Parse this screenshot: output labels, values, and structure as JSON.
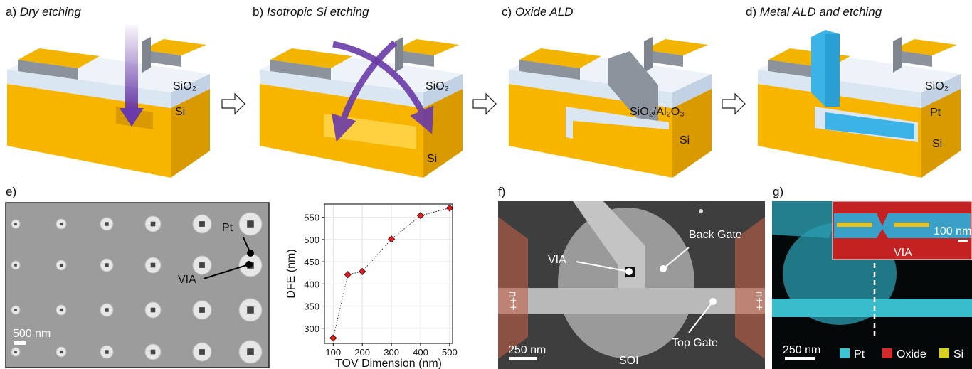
{
  "panels": [
    {
      "label": "a)",
      "title": "Dry etching",
      "annotations": [
        "SiO₂",
        "Si"
      ]
    },
    {
      "label": "b)",
      "title": "Isotropic Si etching",
      "annotations": [
        "SiO₂",
        "Si"
      ]
    },
    {
      "label": "c)",
      "title": "Oxide ALD",
      "annotations": [
        "SiO₂/Al₂O₃",
        "Si"
      ]
    },
    {
      "label": "d)",
      "title": "Metal ALD and etching",
      "annotations": [
        "SiO₂",
        "Pt",
        "Si"
      ]
    }
  ],
  "panel_e": {
    "label": "e)",
    "annotations": [
      "Pt",
      "VIA",
      "500 nm"
    ]
  },
  "chart_data": {
    "type": "line",
    "x": [
      100,
      150,
      200,
      300,
      400,
      500
    ],
    "values": [
      278,
      421,
      428,
      501,
      554,
      571
    ],
    "color": "#e02020",
    "marker": "diamond",
    "line_style": "dotted",
    "xlabel": "TOV Dimension (nm)",
    "ylabel": "DFE (nm)",
    "xlim": [
      70,
      510
    ],
    "xticks": [
      100,
      200,
      300,
      400,
      500
    ],
    "ylim": [
      266,
      580
    ],
    "yticks": [
      300,
      350,
      400,
      450,
      500,
      550
    ],
    "grid": true
  },
  "panel_f": {
    "label": "f)",
    "annotations": [
      "VIA",
      "Back Gate",
      "n++",
      "n++",
      "Top Gate",
      "250 nm",
      "SOI"
    ]
  },
  "panel_g": {
    "label": "g)",
    "annotations": [
      "100 nm",
      "VIA",
      "250 nm"
    ],
    "legend": [
      "Pt",
      "Oxide",
      "Si"
    ]
  }
}
